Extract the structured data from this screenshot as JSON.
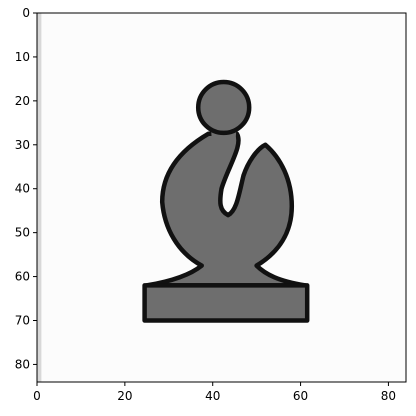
{
  "chart_data": {
    "type": "image",
    "xlim": [
      0,
      84
    ],
    "ylim": [
      84,
      0
    ],
    "x_ticks": [
      0,
      20,
      40,
      60,
      80
    ],
    "y_ticks": [
      0,
      10,
      20,
      30,
      40,
      50,
      60,
      70,
      80
    ],
    "x_tick_labels": [
      "0",
      "20",
      "40",
      "60",
      "80"
    ],
    "y_tick_labels": [
      "0",
      "10",
      "20",
      "30",
      "40",
      "50",
      "60",
      "70",
      "80"
    ],
    "grid": false,
    "image_content": "bishop-chess-piece-icon",
    "colors": {
      "background": "#fcfcfc",
      "piece_fill": "#6e6e6e",
      "piece_outline": "#111111",
      "left_edge_shade": "#d8d8d8"
    }
  }
}
